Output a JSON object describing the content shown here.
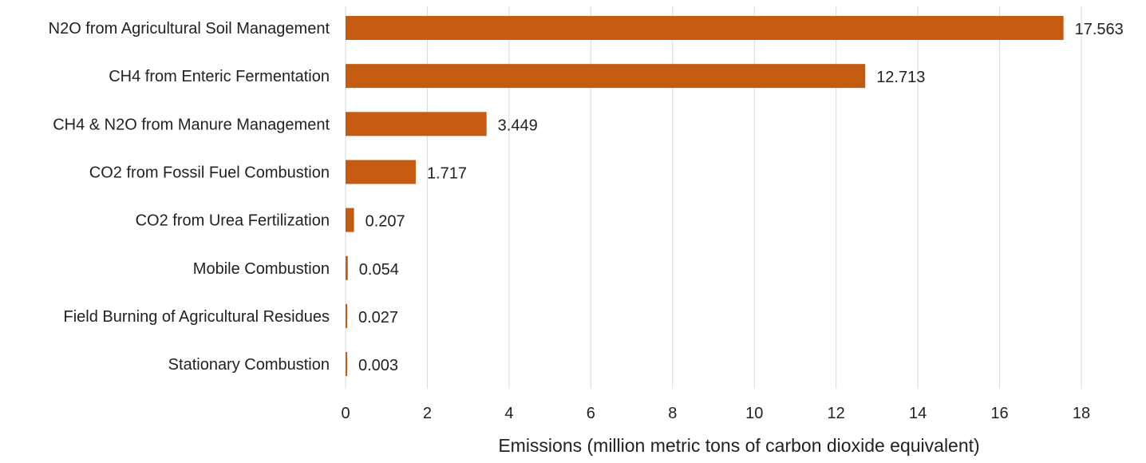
{
  "chart_data": {
    "type": "bar",
    "orientation": "horizontal",
    "categories": [
      "N2O from Agricultural Soil Management",
      "CH4 from Enteric Fermentation",
      "CH4 & N2O from Manure Management",
      "CO2 from Fossil Fuel Combustion",
      "CO2 from Urea Fertilization",
      "Mobile Combustion",
      "Field Burning of Agricultural Residues",
      "Stationary Combustion"
    ],
    "values": [
      17.563,
      12.713,
      3.449,
      1.717,
      0.207,
      0.054,
      0.027,
      0.003
    ],
    "value_labels": [
      "17.563",
      "12.713",
      "3.449",
      "1.717",
      "0.207",
      "0.054",
      "0.027",
      "0.003"
    ],
    "title": "",
    "xlabel": "Emissions (million metric tons of carbon dioxide equivalent)",
    "ylabel": "",
    "xlim": [
      0,
      18
    ],
    "xticks": [
      0,
      2,
      4,
      6,
      8,
      10,
      12,
      14,
      16,
      18
    ],
    "xtick_labels": [
      "0",
      "2",
      "4",
      "6",
      "8",
      "10",
      "12",
      "14",
      "16",
      "18"
    ],
    "grid": "vertical",
    "legend": "none",
    "bar_color": "#c55a11"
  }
}
